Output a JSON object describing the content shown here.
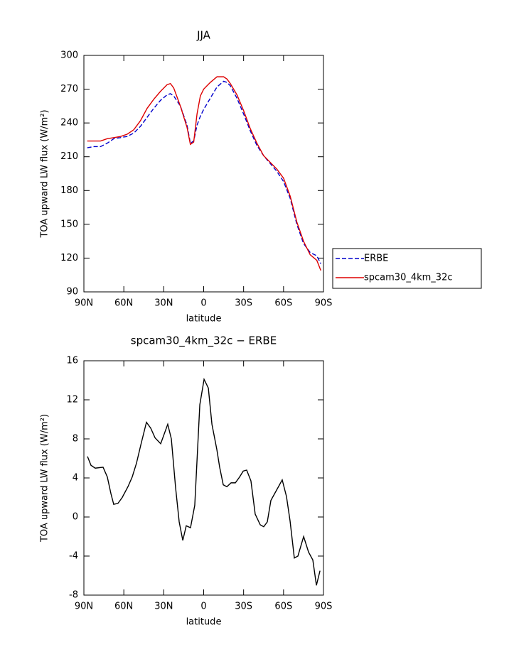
{
  "chart_data": [
    {
      "type": "line",
      "title": "JJA",
      "xlabel": "latitude",
      "ylabel": "TOA upward LW flux (W/m²)",
      "x": [
        87.5,
        82.5,
        77.5,
        72.5,
        67.5,
        62.5,
        57.5,
        52.5,
        47.5,
        42.5,
        37.5,
        32.5,
        27.5,
        25,
        22.5,
        17.5,
        12.5,
        10,
        7.5,
        5,
        2.5,
        0,
        -5,
        -10,
        -15,
        -17.5,
        -20,
        -25,
        -30,
        -35,
        -40,
        -45,
        -50,
        -55,
        -60,
        -65,
        -70,
        -75,
        -80,
        -85,
        -88
      ],
      "series": [
        {
          "name": "ERBE",
          "color": "#0000cc",
          "style": "dashed",
          "values": [
            218,
            219,
            219,
            222,
            226,
            227,
            228,
            231,
            237,
            245,
            253,
            260,
            265,
            266,
            264,
            255,
            238,
            222,
            224,
            238,
            246,
            252,
            262,
            272,
            277,
            276,
            273,
            262,
            248,
            233,
            220,
            211,
            204,
            197,
            188,
            173,
            150,
            133,
            125,
            122,
            115
          ]
        },
        {
          "name": "spcam30_4km_32c",
          "color": "#dd0000",
          "style": "solid",
          "values": [
            224,
            224,
            224,
            226,
            227,
            228,
            230,
            234,
            242,
            253,
            261,
            268,
            274,
            275,
            271,
            255,
            236,
            221,
            223,
            248,
            264,
            270,
            276,
            281,
            281,
            279,
            275,
            265,
            251,
            235,
            222,
            211,
            205,
            199,
            191,
            175,
            152,
            135,
            123,
            118,
            109
          ]
        }
      ],
      "xlim": [
        90,
        -90
      ],
      "xticks": [
        {
          "value": 90,
          "label": "90N"
        },
        {
          "value": 60,
          "label": "60N"
        },
        {
          "value": 30,
          "label": "30N"
        },
        0,
        {
          "value": -30,
          "label": "30S"
        },
        {
          "value": -60,
          "label": "60S"
        },
        {
          "value": -90,
          "label": "90S"
        }
      ],
      "ylim": [
        90,
        300
      ],
      "yticks": [
        90,
        120,
        150,
        180,
        210,
        240,
        270,
        300
      ],
      "legend": "outside right"
    },
    {
      "type": "line",
      "title": "spcam30_4km_32c − ERBE",
      "xlabel": "latitude",
      "ylabel": "TOA upward LW flux (W/m²)",
      "x": [
        87.3,
        84.7,
        81.5,
        75.6,
        72.4,
        69.7,
        67.6,
        64.4,
        61.2,
        56.9,
        53.7,
        50.5,
        47.2,
        43.0,
        39.8,
        36.5,
        32.3,
        27.0,
        24.3,
        21.1,
        18.4,
        15.7,
        13.1,
        9.9,
        6.7,
        2.9,
        -0.3,
        -3.5,
        -6.2,
        -9.9,
        -12.0,
        -14.7,
        -17.4,
        -20.6,
        -23.8,
        -27.0,
        -29.7,
        -32.3,
        -35.5,
        -38.7,
        -42.5,
        -45.1,
        -47.8,
        -50.5,
        -59.0,
        -62.2,
        -64.9,
        -68.1,
        -70.8,
        -75.1,
        -78.8,
        -82.0,
        -84.7,
        -87.4
      ],
      "series": [
        {
          "name": "spcam30_4km_32c − ERBE",
          "color": "#000000",
          "style": "solid",
          "values": [
            6.2,
            5.3,
            5.0,
            5.1,
            4.1,
            2.4,
            1.3,
            1.4,
            2.0,
            3.1,
            4.1,
            5.5,
            7.4,
            9.7,
            9.1,
            8.1,
            7.5,
            9.5,
            8.0,
            3.0,
            -0.5,
            -2.4,
            -0.9,
            -1.1,
            1.2,
            11.5,
            14.1,
            13.2,
            9.5,
            6.9,
            5.1,
            3.3,
            3.1,
            3.5,
            3.5,
            4.1,
            4.7,
            4.8,
            3.7,
            0.3,
            -0.8,
            -1.0,
            -0.5,
            1.7,
            3.8,
            2.1,
            -0.4,
            -4.2,
            -4.0,
            -2.0,
            -3.6,
            -4.4,
            -7.0,
            -5.5
          ]
        }
      ],
      "xlim": [
        90,
        -90
      ],
      "xticks": [
        {
          "value": 90,
          "label": "90N"
        },
        {
          "value": 60,
          "label": "60N"
        },
        {
          "value": 30,
          "label": "30N"
        },
        0,
        {
          "value": -30,
          "label": "30S"
        },
        {
          "value": -60,
          "label": "60S"
        },
        {
          "value": -90,
          "label": "90S"
        }
      ],
      "ylim": [
        -8,
        16
      ],
      "yticks": [
        -8,
        -4,
        0,
        4,
        8,
        12,
        16
      ]
    }
  ]
}
